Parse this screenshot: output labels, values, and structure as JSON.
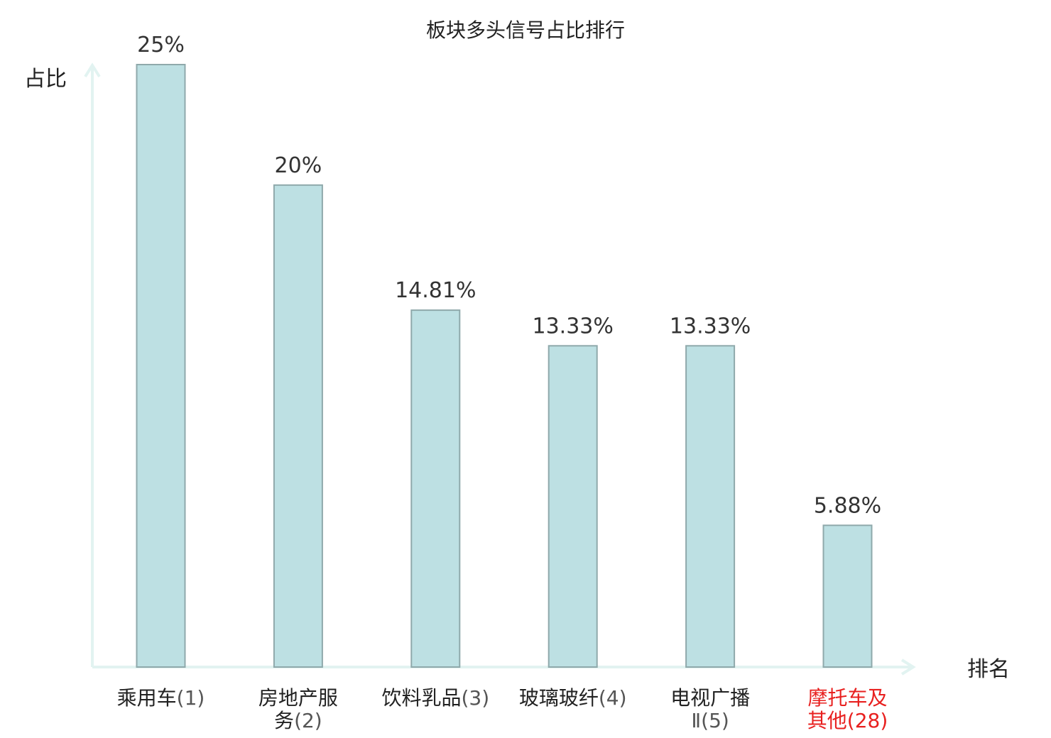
{
  "chart_data": {
    "type": "bar",
    "title": "板块多头信号占比排行",
    "ylabel": "占比",
    "xlabel": "排名",
    "categories": [
      {
        "lines": [
          {
            "text": "乘用车",
            "num": "(1)"
          }
        ]
      },
      {
        "lines": [
          {
            "text": "房地产服",
            "num": ""
          },
          {
            "text": "务",
            "num": "(2)"
          }
        ]
      },
      {
        "lines": [
          {
            "text": "饮料乳品",
            "num": "(3)"
          }
        ]
      },
      {
        "lines": [
          {
            "text": "玻璃玻纤",
            "num": "(4)"
          }
        ]
      },
      {
        "lines": [
          {
            "text": "电视广播",
            "num": ""
          },
          {
            "text": "",
            "num": "Ⅱ(5)"
          }
        ]
      },
      {
        "lines": [
          {
            "text": "摩托车及",
            "num": ""
          },
          {
            "text": "其他",
            "num": "(28)"
          }
        ],
        "highlight": true
      }
    ],
    "values": [
      25,
      20,
      14.81,
      13.33,
      13.33,
      5.88
    ],
    "value_labels": [
      "25%",
      "20%",
      "14.81%",
      "13.33%",
      "13.33%",
      "5.88%"
    ],
    "ylim": [
      0,
      25
    ],
    "grid": false,
    "legend": "none",
    "colors": {
      "bar_fill": "#bde0e3",
      "bar_stroke": "#8fa9ab",
      "axis": "#e2f3f1",
      "highlight_label": "#e8201f"
    }
  }
}
